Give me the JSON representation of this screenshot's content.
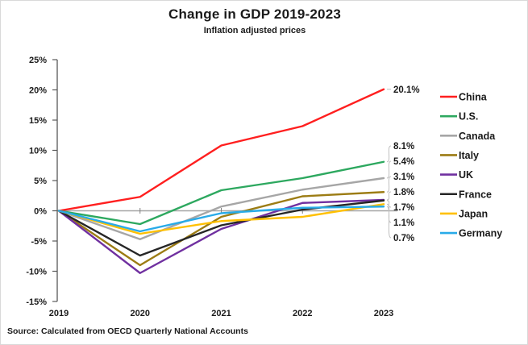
{
  "title": "Change in GDP 2019-2023",
  "subtitle": "Inflation adjusted prices",
  "source": "Source:  Calculated from OECD Quarterly National Accounts",
  "chart_data": {
    "type": "line",
    "title": "Change in GDP 2019-2023",
    "subtitle": "Inflation adjusted prices",
    "x": [
      "2019",
      "2020",
      "2021",
      "2022",
      "2023"
    ],
    "xlabel": "",
    "ylabel": "",
    "ylim": [
      -15,
      25
    ],
    "ytick_step": 5,
    "ytick_labels": [
      "25%",
      "20%",
      "15%",
      "10%",
      "5%",
      "0%",
      "-5%",
      "-10%",
      "-15%"
    ],
    "grid": "zero-line-only",
    "legend_position": "right",
    "series": [
      {
        "name": "China",
        "color": "#FF1F1F",
        "values": [
          0,
          2.3,
          10.8,
          14.0,
          20.1
        ],
        "end_label": "20.1%"
      },
      {
        "name": "U.S.",
        "color": "#2DA85F",
        "values": [
          0,
          -2.2,
          3.4,
          5.4,
          8.1
        ],
        "end_label": "8.1%"
      },
      {
        "name": "Canada",
        "color": "#A6A6A6",
        "values": [
          0,
          -4.7,
          0.7,
          3.5,
          5.4
        ],
        "end_label": "5.4%"
      },
      {
        "name": "Italy",
        "color": "#9C7C14",
        "values": [
          0,
          -9.0,
          -1.0,
          2.4,
          3.1
        ],
        "end_label": "3.1%"
      },
      {
        "name": "UK",
        "color": "#7030A0",
        "values": [
          0,
          -10.3,
          -3.0,
          1.3,
          1.8
        ],
        "end_label": "1.8%"
      },
      {
        "name": "France",
        "color": "#262626",
        "values": [
          0,
          -7.4,
          -2.4,
          0.2,
          1.7
        ],
        "end_label": "1.7%"
      },
      {
        "name": "Japan",
        "color": "#FFC000",
        "values": [
          0,
          -3.8,
          -1.7,
          -1.0,
          1.1
        ],
        "end_label": "1.1%"
      },
      {
        "name": "Germany",
        "color": "#29ABE8",
        "values": [
          0,
          -3.4,
          -0.4,
          0.5,
          0.7
        ],
        "end_label": "0.7%"
      }
    ]
  }
}
